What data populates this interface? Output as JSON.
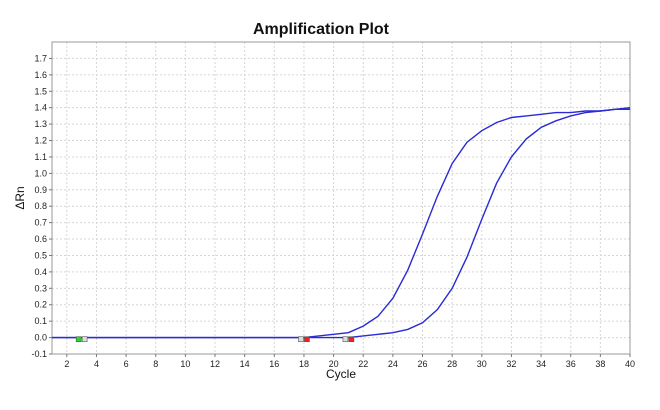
{
  "chart_data": {
    "type": "line",
    "title": "Amplification Plot",
    "xlabel": "Cycle",
    "ylabel": "ΔRn",
    "xlim": [
      1,
      40
    ],
    "ylim": [
      -0.1,
      1.8
    ],
    "xticks": [
      2,
      4,
      6,
      8,
      10,
      12,
      14,
      16,
      18,
      20,
      22,
      24,
      26,
      28,
      30,
      32,
      34,
      36,
      38,
      40
    ],
    "yticks": [
      -0.1,
      0.0,
      0.1,
      0.2,
      0.3,
      0.4,
      0.5,
      0.6,
      0.7,
      0.8,
      0.9,
      1.0,
      1.1,
      1.2,
      1.3,
      1.4,
      1.5,
      1.6,
      1.7
    ],
    "grid": true,
    "series": [
      {
        "color": "#2a2ad6",
        "x": [
          1,
          3,
          6,
          10,
          14,
          16,
          17,
          18,
          19,
          20,
          21,
          22,
          23,
          24,
          25,
          26,
          27,
          28,
          29,
          30,
          31,
          32,
          33,
          34,
          35,
          36,
          37,
          38,
          39,
          40
        ],
        "y": [
          0.0,
          0.0,
          0.0,
          0.0,
          0.0,
          0.0,
          0.0,
          0.0,
          0.01,
          0.02,
          0.03,
          0.07,
          0.13,
          0.24,
          0.41,
          0.63,
          0.86,
          1.06,
          1.19,
          1.26,
          1.31,
          1.34,
          1.35,
          1.36,
          1.37,
          1.37,
          1.38,
          1.38,
          1.39,
          1.39
        ]
      },
      {
        "color": "#2a2ad6",
        "x": [
          1,
          3,
          6,
          10,
          14,
          18,
          20,
          21,
          22,
          23,
          24,
          25,
          26,
          27,
          28,
          29,
          30,
          31,
          32,
          33,
          34,
          35,
          36,
          37,
          38,
          39,
          40
        ],
        "y": [
          0.0,
          0.0,
          0.0,
          0.0,
          0.0,
          0.0,
          0.0,
          0.0,
          0.01,
          0.02,
          0.03,
          0.05,
          0.09,
          0.17,
          0.3,
          0.49,
          0.72,
          0.94,
          1.1,
          1.21,
          1.28,
          1.32,
          1.35,
          1.37,
          1.38,
          1.39,
          1.4
        ]
      }
    ],
    "markers": [
      {
        "x": 2.8,
        "y": -0.01,
        "color": "#22dd22"
      },
      {
        "x": 3.2,
        "y": -0.01,
        "color": "#dddddd"
      },
      {
        "x": 17.8,
        "y": -0.01,
        "color": "#dddddd"
      },
      {
        "x": 18.2,
        "y": -0.01,
        "color": "#ee2222"
      },
      {
        "x": 20.8,
        "y": -0.01,
        "color": "#dddddd"
      },
      {
        "x": 21.2,
        "y": -0.01,
        "color": "#ee2222"
      }
    ]
  }
}
